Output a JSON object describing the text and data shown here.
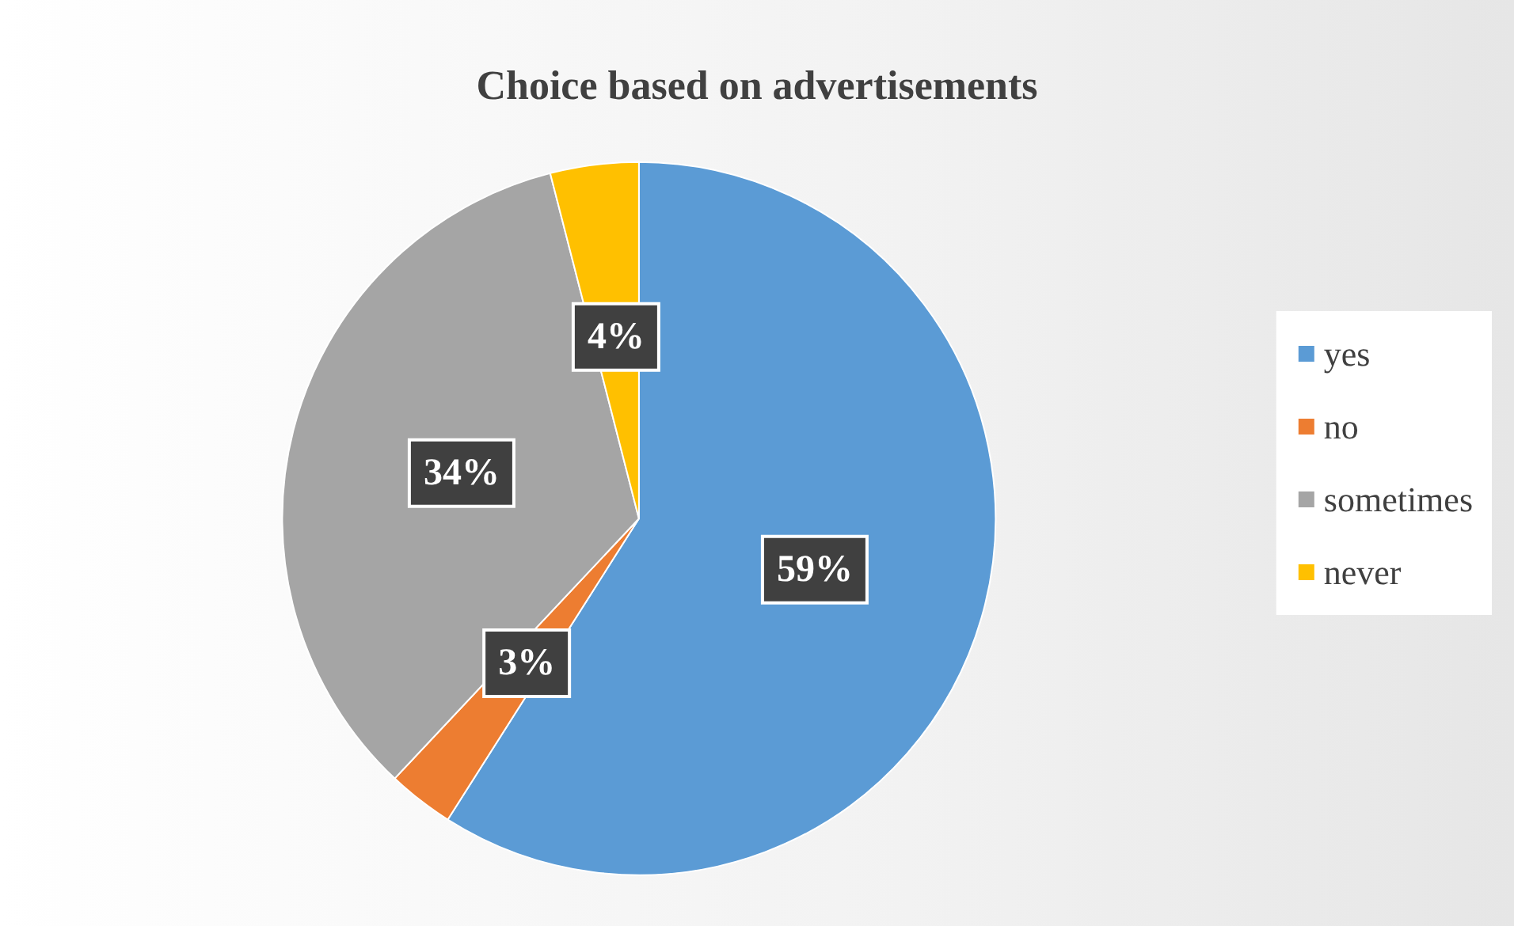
{
  "chart_data": {
    "type": "pie",
    "title": "Choice based on advertisements",
    "categories": [
      "yes",
      "no",
      "sometimes",
      "never"
    ],
    "values": [
      59,
      3,
      34,
      4
    ],
    "colors": [
      "#5b9bd5",
      "#ed7d31",
      "#a5a5a5",
      "#ffc000"
    ],
    "value_labels": [
      "59%",
      "3%",
      "34%",
      "4%"
    ],
    "legend": "right"
  }
}
